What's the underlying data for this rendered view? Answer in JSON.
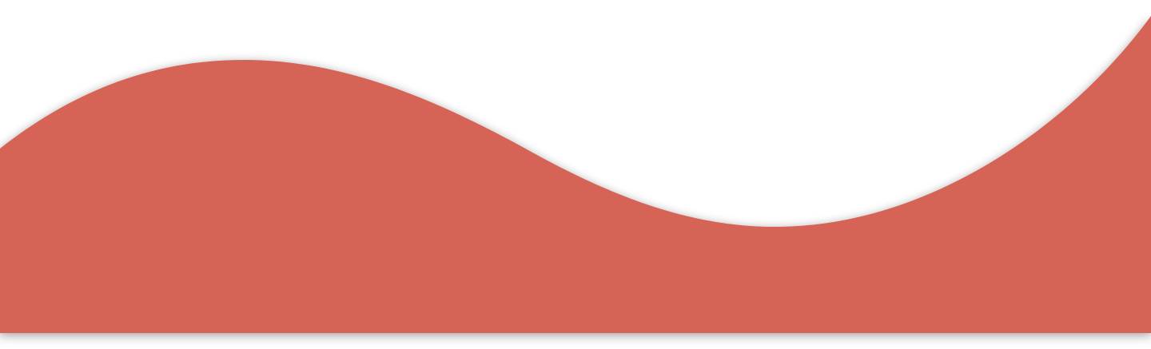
{
  "colors": {
    "background": "#ffffff",
    "wave_fill": "#d56456",
    "shadow": "#000000"
  }
}
